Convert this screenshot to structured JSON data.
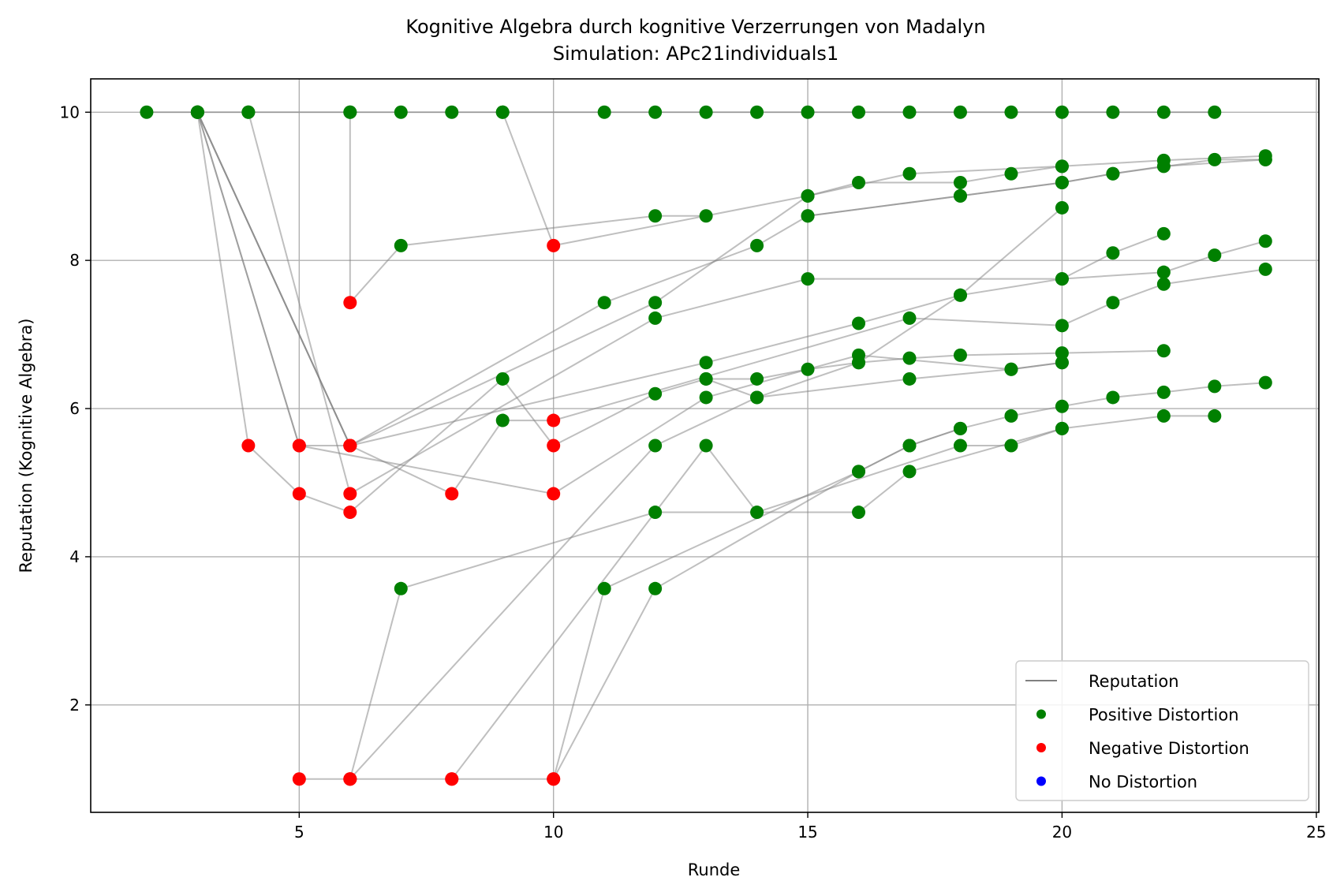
{
  "chart_data": {
    "type": "scatter",
    "title": "Kognitive Algebra durch kognitive Verzerrungen von Madalyn",
    "subtitle": "Simulation: APc21individuals1",
    "xlabel": "Runde",
    "ylabel": "Reputation (Kognitive Algebra)",
    "xlim": [
      0.9,
      25.05
    ],
    "ylim": [
      0.55,
      10.45
    ],
    "xticks": [
      5,
      10,
      15,
      20,
      25
    ],
    "yticks": [
      2,
      4,
      6,
      8,
      10
    ],
    "grid": true,
    "legend_position": "lower right",
    "legend": [
      {
        "label": "Reputation",
        "kind": "line",
        "color": "#808080"
      },
      {
        "label": "Positive Distortion",
        "kind": "marker",
        "color": "#008000"
      },
      {
        "label": "Negative Distortion",
        "kind": "marker",
        "color": "#ff0000"
      },
      {
        "label": "No Distortion",
        "kind": "marker",
        "color": "#0000ff"
      }
    ],
    "line_color": "#808080",
    "colors": {
      "positive": "#008000",
      "negative": "#ff0000",
      "none": "#0000ff"
    },
    "series": [
      {
        "points": [
          [
            2,
            10
          ],
          [
            3,
            10
          ],
          [
            4,
            10
          ],
          [
            6,
            10
          ],
          [
            7,
            10
          ],
          [
            8,
            10
          ],
          [
            9,
            10
          ],
          [
            11,
            10
          ],
          [
            12,
            10
          ],
          [
            13,
            10
          ],
          [
            14,
            10
          ],
          [
            15,
            10
          ],
          [
            16,
            10
          ],
          [
            17,
            10
          ],
          [
            18,
            10
          ],
          [
            19,
            10
          ],
          [
            20,
            10
          ],
          [
            21,
            10
          ],
          [
            22,
            10
          ],
          [
            23,
            10
          ]
        ],
        "kinds": [
          "p",
          "p",
          "p",
          "p",
          "p",
          "p",
          "p",
          "p",
          "p",
          "p",
          "p",
          "p",
          "p",
          "p",
          "p",
          "p",
          "p",
          "p",
          "p",
          "p"
        ]
      },
      {
        "points": [
          [
            3,
            10
          ],
          [
            4,
            5.5
          ],
          [
            5,
            4.85
          ],
          [
            6,
            4.6
          ],
          [
            9,
            6.4
          ],
          [
            10,
            5.5
          ],
          [
            12,
            6.2
          ],
          [
            13,
            6.4
          ],
          [
            14,
            6.4
          ],
          [
            15,
            6.53
          ],
          [
            16,
            6.62
          ],
          [
            17,
            6.68
          ],
          [
            18,
            6.72
          ],
          [
            20,
            6.75
          ],
          [
            22,
            6.78
          ]
        ],
        "kinds": [
          "p",
          "n",
          "n",
          "n",
          "p",
          "n",
          "p",
          "p",
          "p",
          "p",
          "p",
          "p",
          "p",
          "p",
          "p"
        ]
      },
      {
        "points": [
          [
            3,
            10
          ],
          [
            5,
            5.5
          ],
          [
            6,
            5.5
          ],
          [
            13,
            6.62
          ],
          [
            16,
            7.15
          ],
          [
            18,
            7.53
          ],
          [
            20,
            7.75
          ],
          [
            21,
            8.1
          ],
          [
            22,
            8.36
          ]
        ],
        "kinds": [
          "p",
          "n",
          "n",
          "p",
          "p",
          "p",
          "p",
          "p",
          "p"
        ]
      },
      {
        "points": [
          [
            3,
            10
          ],
          [
            6,
            5.5
          ],
          [
            11,
            7.43
          ],
          [
            14,
            8.2
          ],
          [
            15,
            8.6
          ],
          [
            18,
            8.87
          ],
          [
            20,
            9.05
          ],
          [
            21,
            9.17
          ],
          [
            22,
            9.27
          ],
          [
            24,
            9.36
          ]
        ],
        "kinds": [
          "p",
          "n",
          "p",
          "p",
          "p",
          "p",
          "p",
          "p",
          "p",
          "p"
        ]
      },
      {
        "points": [
          [
            3,
            10
          ],
          [
            5,
            5.5
          ],
          [
            10,
            4.85
          ],
          [
            13,
            6.15
          ],
          [
            16,
            6.72
          ],
          [
            19,
            6.53
          ],
          [
            20,
            6.62
          ]
        ],
        "kinds": [
          "p",
          "n",
          "n",
          "p",
          "p",
          "p",
          "p"
        ]
      },
      {
        "points": [
          [
            3,
            10
          ],
          [
            6,
            5.5
          ],
          [
            12,
            7.43
          ],
          [
            15,
            8.87
          ],
          [
            17,
            9.17
          ],
          [
            20,
            9.27
          ],
          [
            22,
            9.35
          ],
          [
            24,
            9.41
          ]
        ],
        "kinds": [
          "p",
          "n",
          "p",
          "p",
          "p",
          "p",
          "p",
          "p"
        ]
      },
      {
        "points": [
          [
            3,
            10
          ],
          [
            6,
            5.5
          ],
          [
            8,
            4.85
          ],
          [
            9,
            5.84
          ],
          [
            10,
            5.84
          ],
          [
            17,
            7.22
          ],
          [
            20,
            7.12
          ],
          [
            21,
            7.43
          ],
          [
            22,
            7.68
          ],
          [
            24,
            7.88
          ]
        ],
        "kinds": [
          "p",
          "n",
          "n",
          "p",
          "n",
          "p",
          "p",
          "p",
          "p",
          "p"
        ]
      },
      {
        "points": [
          [
            4,
            10
          ],
          [
            6,
            4.85
          ],
          [
            12,
            7.22
          ],
          [
            15,
            7.75
          ],
          [
            20,
            7.75
          ],
          [
            22,
            7.84
          ],
          [
            23,
            8.07
          ],
          [
            24,
            8.26
          ]
        ],
        "kinds": [
          "p",
          "n",
          "p",
          "p",
          "p",
          "p",
          "p",
          "p"
        ]
      },
      {
        "points": [
          [
            5,
            1
          ],
          [
            6,
            1
          ],
          [
            8,
            1
          ],
          [
            10,
            1
          ],
          [
            11,
            3.57
          ],
          [
            16,
            5.15
          ],
          [
            17,
            5.5
          ],
          [
            18,
            5.73
          ],
          [
            19,
            5.9
          ],
          [
            20,
            6.03
          ],
          [
            21,
            6.15
          ],
          [
            22,
            6.22
          ],
          [
            23,
            6.3
          ],
          [
            24,
            6.35
          ]
        ],
        "kinds": [
          "n",
          "n",
          "n",
          "n",
          "p",
          "p",
          "p",
          "p",
          "p",
          "p",
          "p",
          "p",
          "p",
          "p"
        ]
      },
      {
        "points": [
          [
            6,
            1
          ],
          [
            7,
            3.57
          ],
          [
            12,
            4.6
          ],
          [
            16,
            4.6
          ],
          [
            17,
            5.15
          ],
          [
            20,
            5.73
          ],
          [
            22,
            5.9
          ],
          [
            23,
            5.9
          ]
        ],
        "kinds": [
          "n",
          "p",
          "p",
          "p",
          "p",
          "p",
          "p",
          "p"
        ]
      },
      {
        "points": [
          [
            6,
            1
          ],
          [
            12,
            5.5
          ],
          [
            14,
            6.15
          ],
          [
            17,
            6.4
          ],
          [
            19,
            6.53
          ],
          [
            20,
            6.62
          ]
        ],
        "kinds": [
          "n",
          "p",
          "p",
          "p",
          "p",
          "p"
        ]
      },
      {
        "points": [
          [
            8,
            1
          ],
          [
            13,
            5.5
          ],
          [
            14,
            4.6
          ],
          [
            18,
            5.5
          ],
          [
            19,
            5.5
          ],
          [
            20,
            5.73
          ]
        ],
        "kinds": [
          "n",
          "p",
          "p",
          "p",
          "p",
          "p"
        ]
      },
      {
        "points": [
          [
            10,
            1
          ],
          [
            12,
            3.57
          ],
          [
            16,
            5.15
          ],
          [
            17,
            5.5
          ],
          [
            18,
            5.73
          ]
        ],
        "kinds": [
          "n",
          "p",
          "p",
          "p",
          "p"
        ]
      },
      {
        "points": [
          [
            6,
            10
          ],
          [
            6,
            7.43
          ],
          [
            7,
            8.2
          ],
          [
            12,
            8.6
          ],
          [
            13,
            8.6
          ]
        ],
        "kinds": [
          "p",
          "n",
          "p",
          "p",
          "p"
        ]
      },
      {
        "points": [
          [
            9,
            10
          ],
          [
            10,
            8.2
          ],
          [
            15,
            8.87
          ],
          [
            16,
            9.05
          ],
          [
            18,
            9.05
          ],
          [
            19,
            9.17
          ],
          [
            20,
            9.27
          ]
        ],
        "kinds": [
          "p",
          "n",
          "p",
          "p",
          "p",
          "p",
          "p"
        ]
      },
      {
        "points": [
          [
            15,
            8.6
          ],
          [
            18,
            8.87
          ],
          [
            20,
            9.05
          ],
          [
            21,
            9.17
          ],
          [
            23,
            9.36
          ],
          [
            24,
            9.36
          ]
        ],
        "kinds": [
          "p",
          "p",
          "p",
          "p",
          "p",
          "p"
        ]
      },
      {
        "points": [
          [
            13,
            6.4
          ],
          [
            14,
            6.15
          ],
          [
            16,
            6.62
          ],
          [
            18,
            7.53
          ],
          [
            20,
            8.71
          ]
        ],
        "kinds": [
          "p",
          "p",
          "p",
          "p",
          "p"
        ]
      }
    ]
  }
}
